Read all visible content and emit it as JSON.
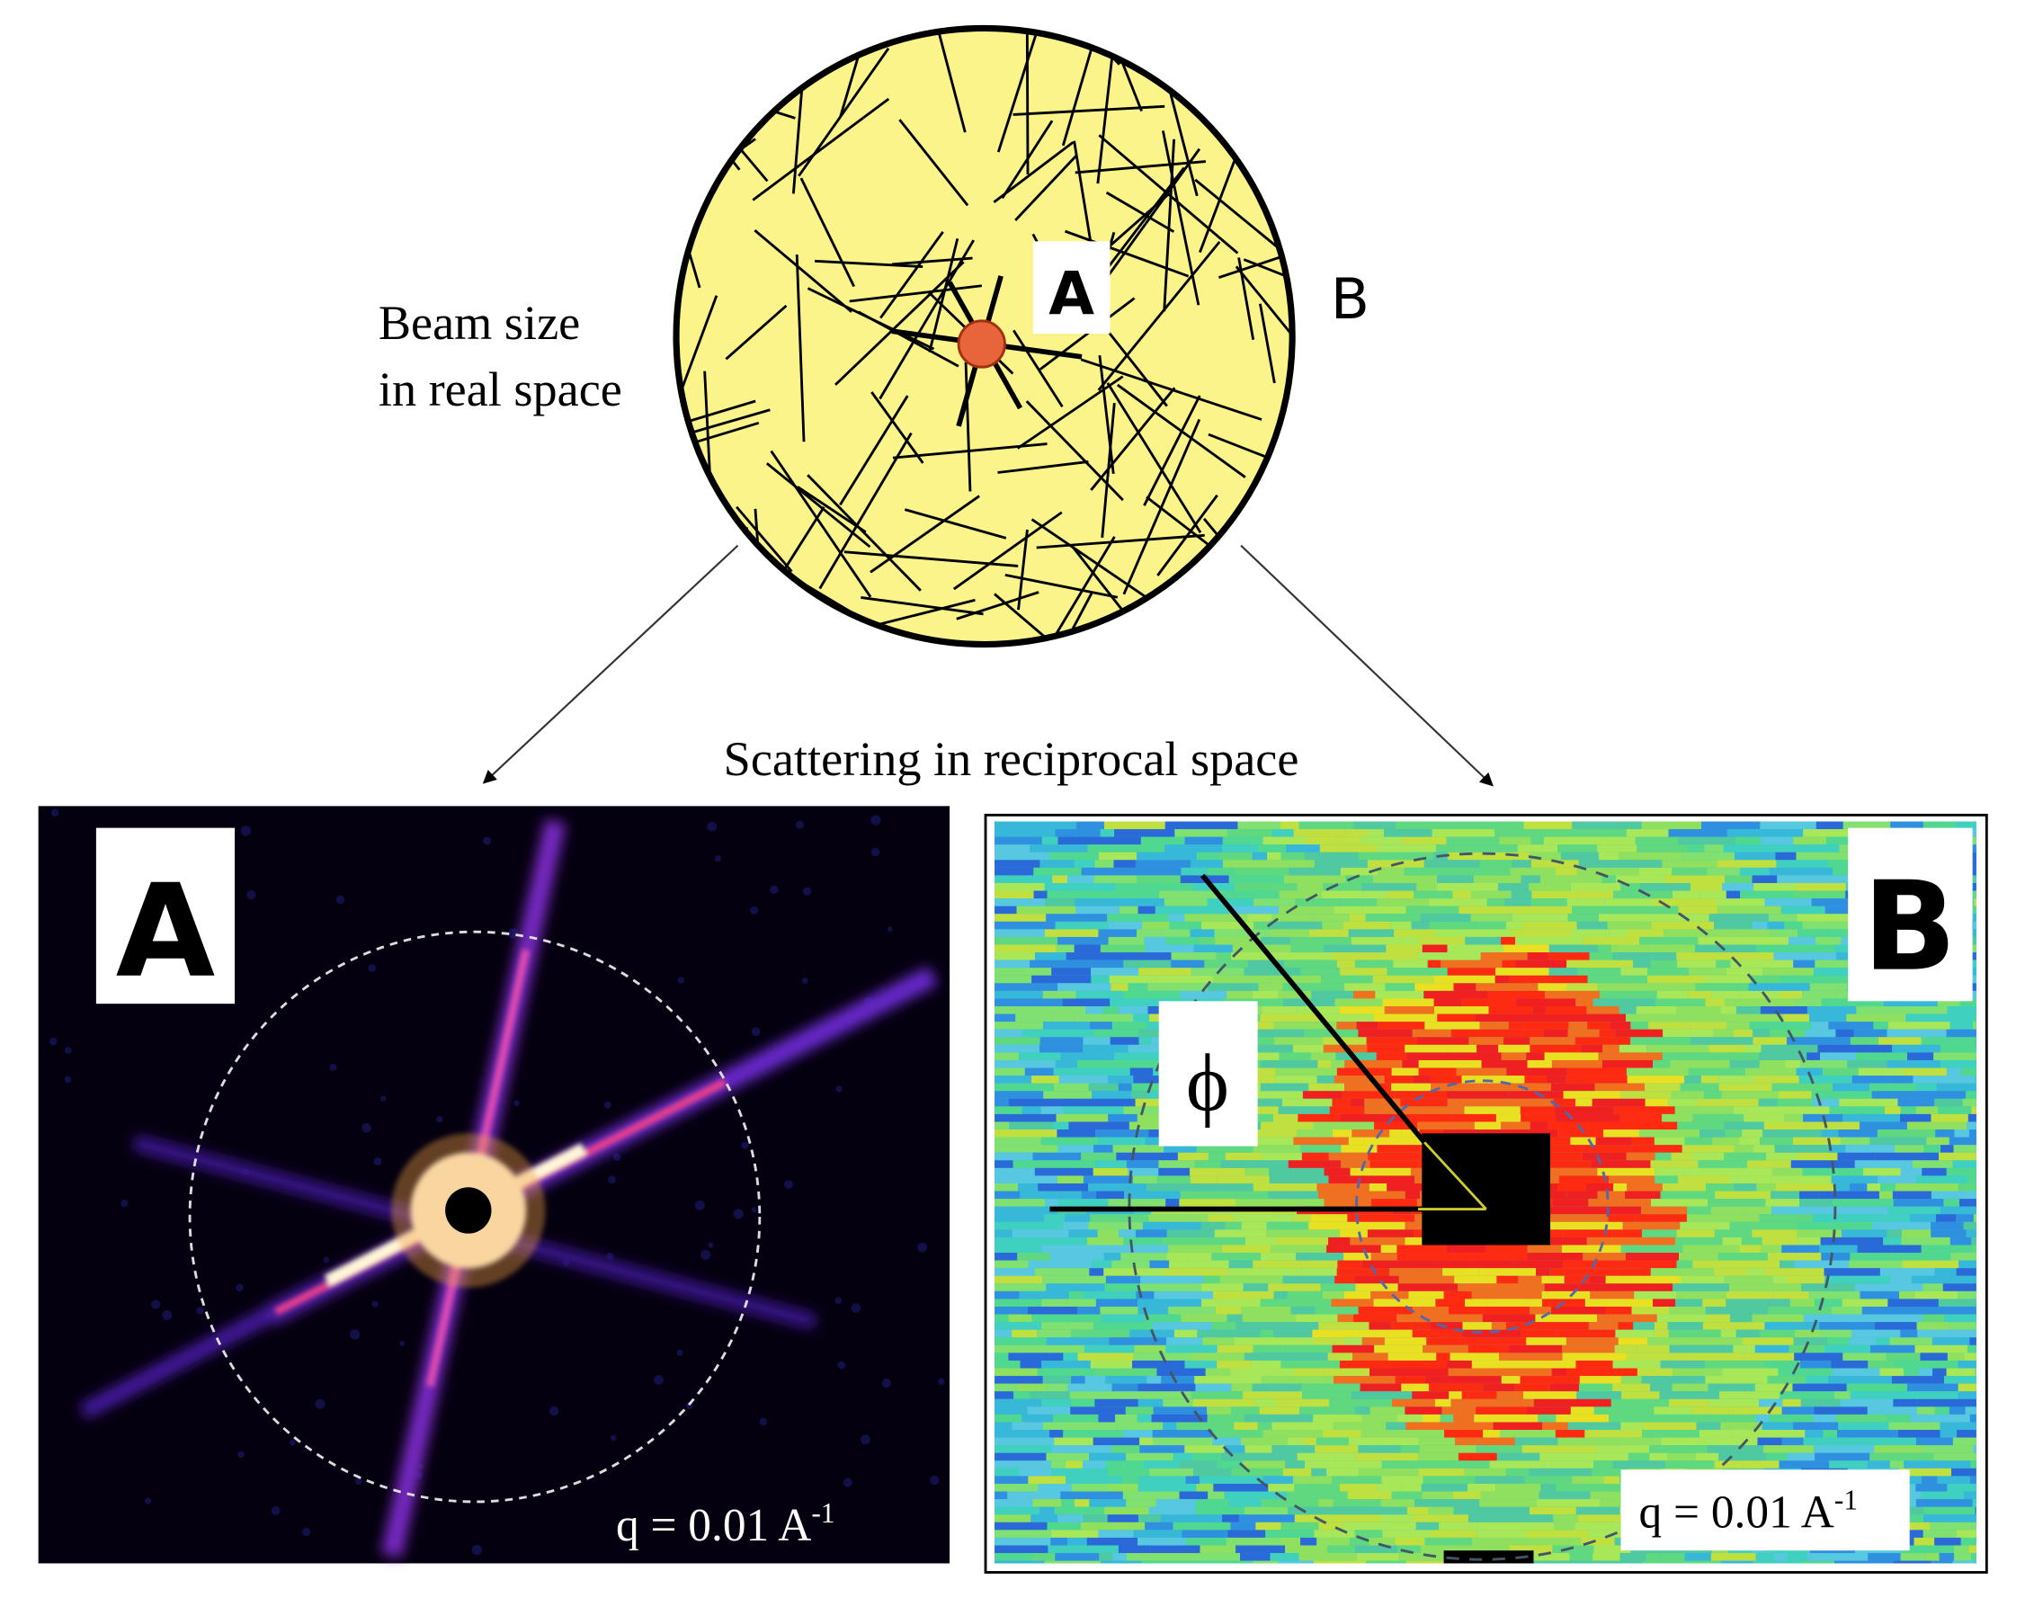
{
  "diagram": {
    "real_space": {
      "label_a": "A",
      "label_b": "B",
      "beam_label": [
        "Beam size",
        "in real space"
      ]
    },
    "caption": "Scattering in reciprocal space",
    "panels": [
      {
        "label": "A",
        "q": {
          "text": "q = 0.01 A",
          "superscript": "-1"
        }
      },
      {
        "label": "B",
        "angle_symbol": "ϕ",
        "q": {
          "text": "q = 0.01 A",
          "superscript": "-1"
        }
      }
    ]
  }
}
